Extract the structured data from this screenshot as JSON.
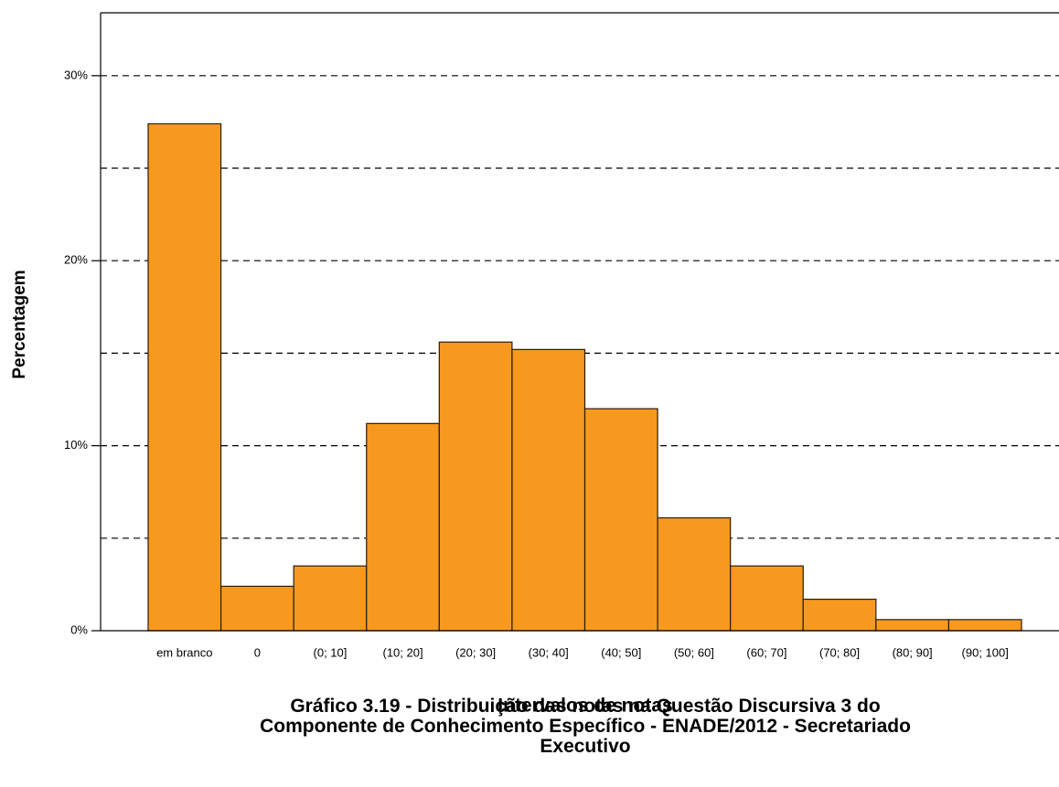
{
  "chart_data": {
    "type": "bar",
    "x_label": "Intervalos de notas",
    "y_label": "Percentagem",
    "caption": "Gráfico 3.19 - Distribuição das notas na Questão Discursiva 3 do Componente de Conhecimento Específico - ENADE/2012 - Secretariado Executivo",
    "categories": [
      "em branco",
      "0",
      "(0; 10]",
      "(10; 20]",
      "(20; 30]",
      "(30; 40]",
      "(40; 50]",
      "(50; 60]",
      "(60; 70]",
      "(70; 80]",
      "(80; 90]",
      "(90; 100]"
    ],
    "values": [
      27.4,
      2.4,
      3.5,
      11.2,
      15.6,
      15.2,
      12.0,
      6.1,
      3.5,
      1.7,
      0.6,
      0.6
    ],
    "color": "#f7991f",
    "ylim": [
      0,
      33.4
    ],
    "yticks": [
      {
        "value": 0,
        "label": "0%"
      },
      {
        "value": 10,
        "label": "10%"
      },
      {
        "value": 20,
        "label": "20%"
      },
      {
        "value": 30,
        "label": "30%"
      }
    ],
    "minor_gridlines": [
      5,
      15,
      25
    ],
    "grid": true
  }
}
